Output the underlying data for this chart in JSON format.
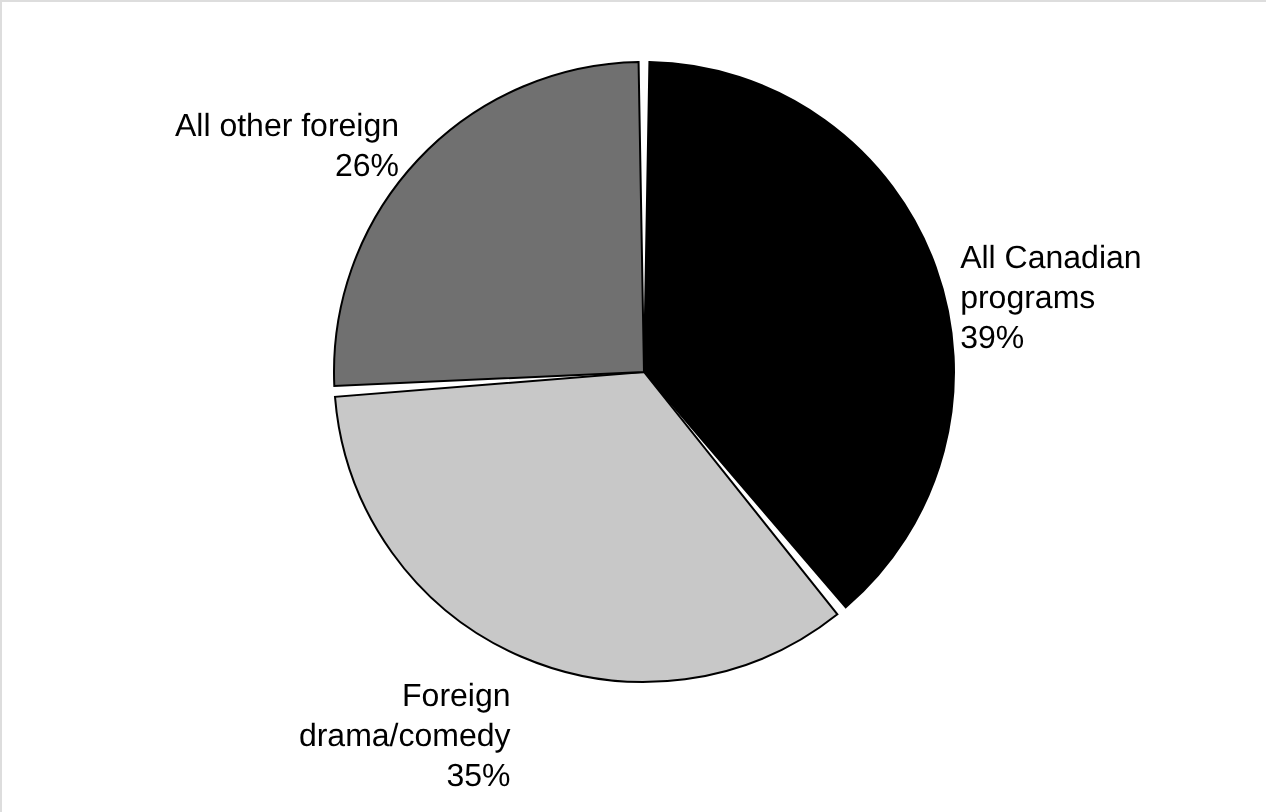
{
  "chart_data": {
    "type": "pie",
    "categories": [
      "All Canadian programs",
      "Foreign drama/comedy",
      "All other foreign"
    ],
    "values": [
      39,
      35,
      26
    ],
    "colors": [
      "#000000",
      "#c8c8c8",
      "#707070"
    ],
    "value_labels": [
      "39%",
      "35%",
      "26%"
    ]
  }
}
